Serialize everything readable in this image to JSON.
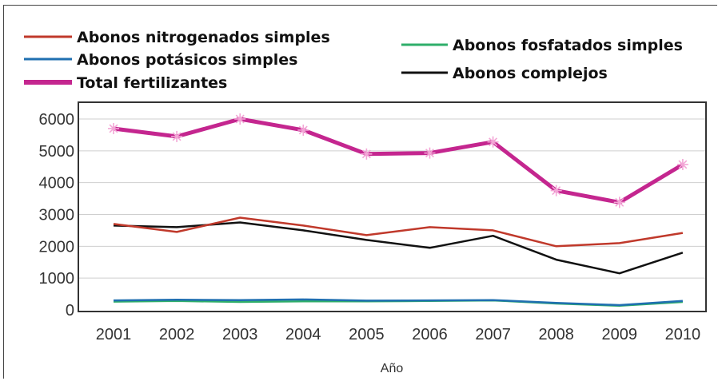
{
  "chart_data": {
    "type": "line",
    "title": "",
    "xlabel": "Año",
    "ylabel": "",
    "ylim": [
      0,
      6000
    ],
    "y_ticks": [
      "0",
      "1000",
      "2000",
      "3000",
      "4000",
      "5000",
      "6000"
    ],
    "categories": [
      "2001",
      "2002",
      "2003",
      "2004",
      "2005",
      "2006",
      "2007",
      "2008",
      "2009",
      "2010"
    ],
    "grid": true,
    "legend_position": "top",
    "series": [
      {
        "name": "Abonos nitrogenados simples",
        "color": "#c0392b",
        "marker": "none",
        "values": [
          2700,
          2450,
          2900,
          2650,
          2350,
          2600,
          2500,
          2000,
          2100,
          2420
        ]
      },
      {
        "name": "Abonos potásicos simples",
        "color": "#1f6fb0",
        "marker": "none",
        "values": [
          300,
          320,
          310,
          330,
          290,
          300,
          310,
          220,
          150,
          280
        ]
      },
      {
        "name": "Total fertilizantes",
        "color": "#c4268f",
        "marker": "star",
        "values": [
          5700,
          5450,
          6000,
          5650,
          4900,
          4930,
          5280,
          3750,
          3380,
          4570
        ]
      },
      {
        "name": "Abonos fosfatados simples",
        "color": "#2fae6a",
        "marker": "none",
        "values": [
          260,
          280,
          250,
          270,
          270,
          280,
          300,
          200,
          130,
          250
        ]
      },
      {
        "name": "Abonos complejos",
        "color": "#111111",
        "marker": "none",
        "values": [
          2650,
          2600,
          2750,
          2500,
          2200,
          1950,
          2330,
          1580,
          1150,
          1800
        ]
      }
    ]
  }
}
